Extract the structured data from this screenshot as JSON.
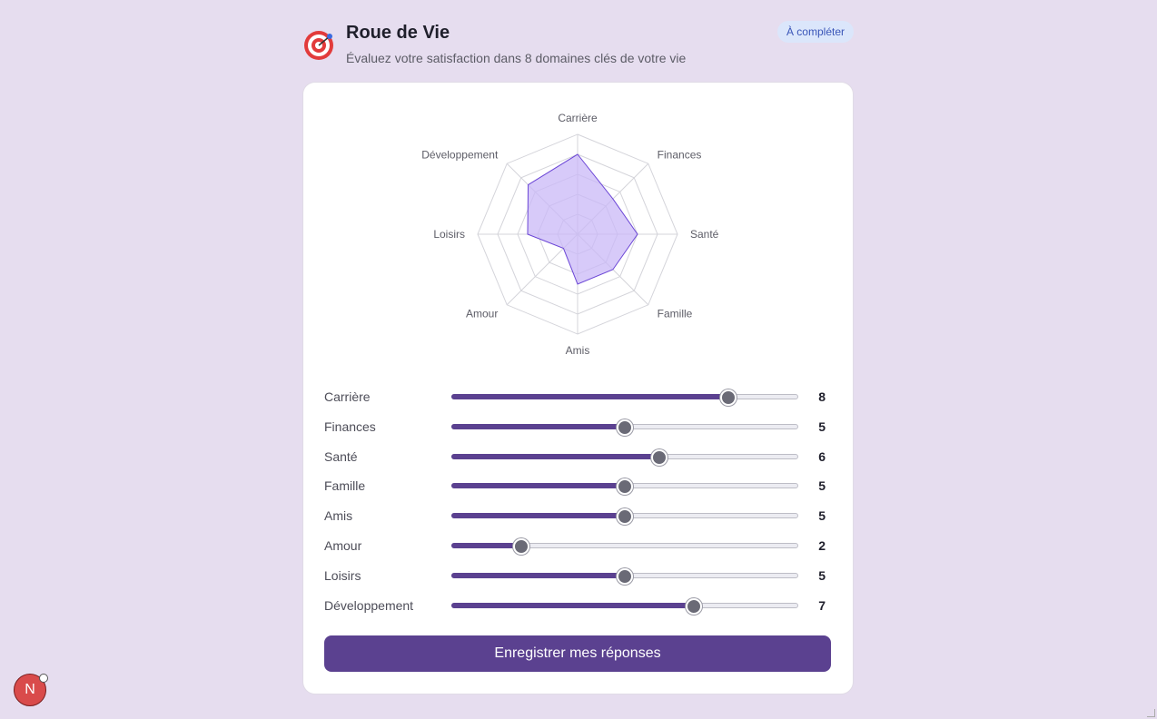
{
  "header": {
    "title": "Roue de Vie",
    "subtitle": "Évaluez votre satisfaction dans 8 domaines clés de votre vie",
    "status_badge": "À compléter"
  },
  "colors": {
    "accent": "#5b4190",
    "radar_fill": "#c9b8f7",
    "radar_stroke": "#6b46d6"
  },
  "scale_max": 10,
  "domains": [
    {
      "label": "Carrière",
      "value": 8
    },
    {
      "label": "Finances",
      "value": 5
    },
    {
      "label": "Santé",
      "value": 6
    },
    {
      "label": "Famille",
      "value": 5
    },
    {
      "label": "Amis",
      "value": 5
    },
    {
      "label": "Amour",
      "value": 2
    },
    {
      "label": "Loisirs",
      "value": 5
    },
    {
      "label": "Développement",
      "value": 7
    }
  ],
  "submit_label": "Enregistrer mes réponses",
  "dev_badge_letter": "N"
}
